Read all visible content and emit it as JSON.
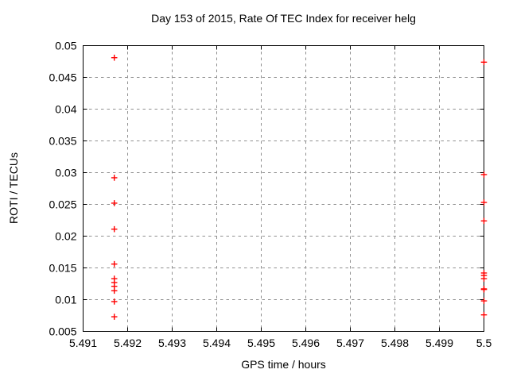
{
  "chart_data": {
    "type": "scatter",
    "title": "Day 153 of 2015, Rate Of TEC Index for receiver helg",
    "xlabel": "GPS time / hours",
    "ylabel": "ROTI / TECUs",
    "xlim": [
      5.491,
      5.5
    ],
    "ylim": [
      0.005,
      0.05
    ],
    "xticks": [
      5.491,
      5.492,
      5.493,
      5.494,
      5.495,
      5.496,
      5.497,
      5.498,
      5.499,
      5.5
    ],
    "xtick_labels": [
      "5.491",
      "5.492",
      "5.493",
      "5.494",
      "5.495",
      "5.496",
      "5.497",
      "5.498",
      "5.499",
      "5.5"
    ],
    "yticks": [
      0.005,
      0.01,
      0.015,
      0.02,
      0.025,
      0.03,
      0.035,
      0.04,
      0.045,
      0.05
    ],
    "ytick_labels": [
      "0.005",
      "0.01",
      "0.015",
      "0.02",
      "0.025",
      "0.03",
      "0.035",
      "0.04",
      "0.045",
      "0.05"
    ],
    "grid": true,
    "legend_position": "none",
    "marker": {
      "shape": "plus",
      "color": "#ff0000",
      "half_size": 3.8,
      "stroke_width": 1.4
    },
    "grid_color": "#909090",
    "axis_color": "#000000",
    "tick_label_color": "#000000",
    "series": [
      {
        "name": "ROTI",
        "points": [
          [
            5.4917,
            0.0481
          ],
          [
            5.4917,
            0.0292
          ],
          [
            5.4917,
            0.0252
          ],
          [
            5.4917,
            0.0211
          ],
          [
            5.4917,
            0.0156
          ],
          [
            5.4917,
            0.0133
          ],
          [
            5.4917,
            0.0127
          ],
          [
            5.4917,
            0.0121
          ],
          [
            5.4917,
            0.0114
          ],
          [
            5.4917,
            0.0097
          ],
          [
            5.4917,
            0.0073
          ],
          [
            5.5,
            0.0474
          ],
          [
            5.5,
            0.0297
          ],
          [
            5.5,
            0.0253
          ],
          [
            5.5,
            0.0224
          ],
          [
            5.5,
            0.0142
          ],
          [
            5.5,
            0.0138
          ],
          [
            5.5,
            0.0133
          ],
          [
            5.5,
            0.0117
          ],
          [
            5.5,
            0.0116
          ],
          [
            5.5,
            0.0098
          ],
          [
            5.5,
            0.0076
          ]
        ]
      }
    ]
  }
}
